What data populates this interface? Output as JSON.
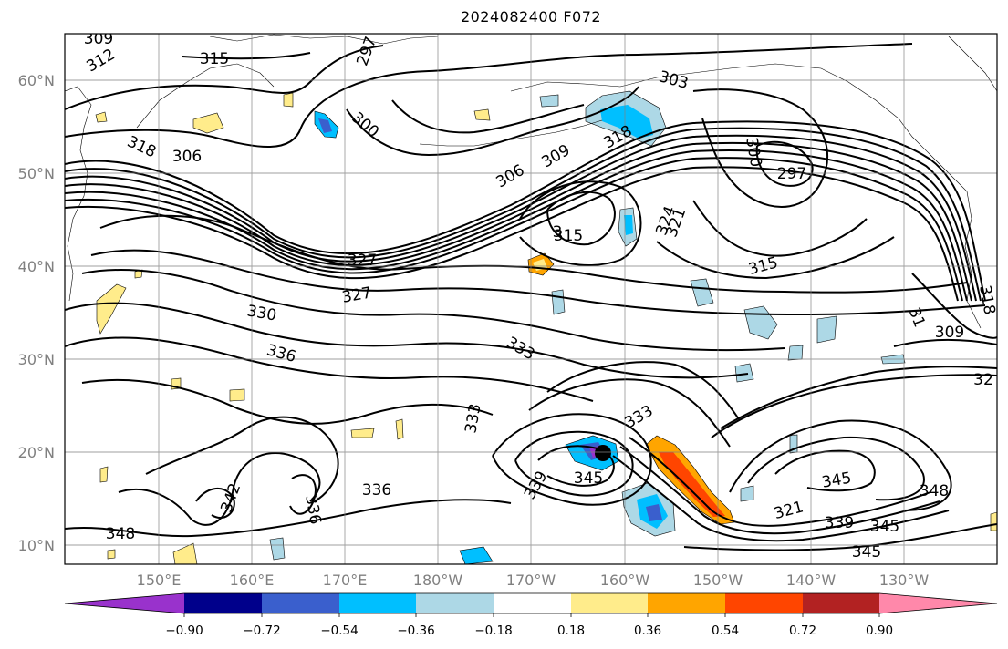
{
  "title": "2024082400 F072",
  "map": {
    "lon_labels": [
      "150°E",
      "160°E",
      "170°E",
      "180°W",
      "170°W",
      "160°W",
      "150°W",
      "140°W",
      "130°W"
    ],
    "lat_labels": [
      "60°N",
      "50°N",
      "40°N",
      "30°N",
      "20°N",
      "10°N"
    ],
    "contour_labels": [
      "309",
      "312",
      "315",
      "297",
      "300",
      "303",
      "306",
      "309",
      "318",
      "318",
      "306",
      "300",
      "297",
      "315",
      "324",
      "321",
      "315",
      "327",
      "327",
      "330",
      "336",
      "333",
      "333",
      "309",
      "318",
      "3",
      "333",
      "345",
      "339",
      "336",
      "342",
      "336",
      "348",
      "345",
      "321",
      "339",
      "345",
      "345",
      "348",
      "32",
      "31"
    ]
  },
  "colorbar": {
    "tick_labels": [
      "−0.90",
      "−0.72",
      "−0.54",
      "−0.36",
      "−0.18",
      "0.18",
      "0.36",
      "0.54",
      "0.72",
      "0.90"
    ],
    "colors": [
      "#9932cc",
      "#00008b",
      "#3a5fcd",
      "#00bfff",
      "#add8e6",
      "#ffffff",
      "#ffec8b",
      "#ffa500",
      "#ff4500",
      "#b22222",
      "#ff88aa"
    ]
  }
}
